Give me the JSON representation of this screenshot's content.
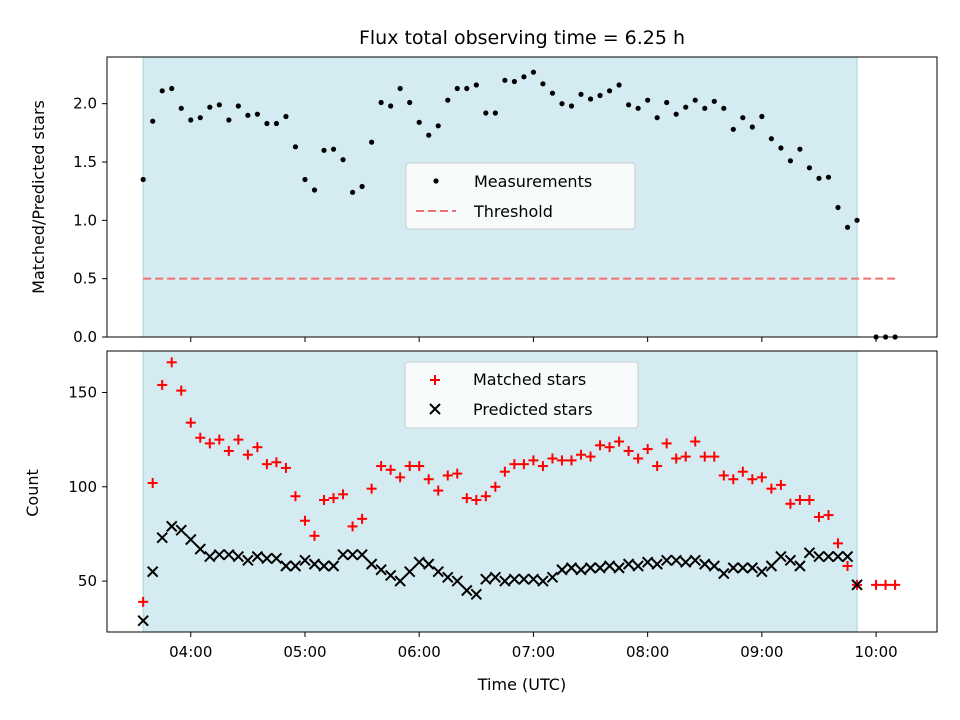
{
  "chart_data": [
    {
      "type": "scatter",
      "title": "Flux total observing time = 6.25 h",
      "ylabel": "Matched/Predicted stars",
      "xlabel": "",
      "xlim": [
        "03:16",
        "10:32"
      ],
      "ylim": [
        0,
        2.4
      ],
      "x_ticks": [
        "04:00",
        "05:00",
        "06:00",
        "07:00",
        "08:00",
        "09:00",
        "10:00"
      ],
      "x_tick_labels_shown": false,
      "y_ticks": [
        0.0,
        0.5,
        1.0,
        1.5,
        2.0
      ],
      "y_tick_labels": [
        "0.0",
        "0.5",
        "1.0",
        "1.5",
        "2.0"
      ],
      "observing_window": [
        "03:35",
        "09:50"
      ],
      "observing_window_color": "#d4ebf1",
      "legend": {
        "placement": "center",
        "entries": [
          "Measurements",
          "Threshold"
        ]
      },
      "series": [
        {
          "name": "Measurements",
          "marker": "dot",
          "color": "#000000",
          "x": [
            "03:35",
            "03:40",
            "03:45",
            "03:50",
            "03:55",
            "04:00",
            "04:05",
            "04:10",
            "04:15",
            "04:20",
            "04:25",
            "04:30",
            "04:35",
            "04:40",
            "04:45",
            "04:50",
            "04:55",
            "05:00",
            "05:05",
            "05:10",
            "05:15",
            "05:20",
            "05:25",
            "05:30",
            "05:35",
            "05:40",
            "05:45",
            "05:50",
            "05:55",
            "06:00",
            "06:05",
            "06:10",
            "06:15",
            "06:20",
            "06:25",
            "06:30",
            "06:35",
            "06:40",
            "06:45",
            "06:50",
            "06:55",
            "07:00",
            "07:05",
            "07:10",
            "07:15",
            "07:20",
            "07:25",
            "07:30",
            "07:35",
            "07:40",
            "07:45",
            "07:50",
            "07:55",
            "08:00",
            "08:05",
            "08:10",
            "08:15",
            "08:20",
            "08:25",
            "08:30",
            "08:35",
            "08:40",
            "08:45",
            "08:50",
            "08:55",
            "09:00",
            "09:05",
            "09:10",
            "09:15",
            "09:20",
            "09:25",
            "09:30",
            "09:35",
            "09:40",
            "09:45",
            "09:50",
            "10:00",
            "10:05",
            "10:10"
          ],
          "y": [
            1.35,
            1.85,
            2.11,
            2.13,
            1.96,
            1.86,
            1.88,
            1.97,
            1.99,
            1.86,
            1.98,
            1.9,
            1.91,
            1.83,
            1.83,
            1.89,
            1.63,
            1.35,
            1.26,
            1.6,
            1.61,
            1.52,
            1.24,
            1.29,
            1.67,
            2.01,
            1.98,
            2.13,
            2.01,
            1.84,
            1.73,
            1.81,
            2.03,
            2.13,
            2.13,
            2.16,
            1.92,
            1.92,
            2.2,
            2.19,
            2.23,
            2.27,
            2.17,
            2.09,
            2.0,
            1.98,
            2.08,
            2.04,
            2.07,
            2.11,
            2.16,
            1.99,
            1.96,
            2.03,
            1.88,
            2.01,
            1.91,
            1.97,
            2.03,
            1.96,
            2.02,
            1.96,
            1.78,
            1.88,
            1.8,
            1.89,
            1.7,
            1.62,
            1.51,
            1.61,
            1.45,
            1.36,
            1.37,
            1.11,
            0.94,
            1.0,
            0.0,
            0.0,
            0.0
          ]
        },
        {
          "name": "Threshold",
          "marker": "dashed-line",
          "color": "#f07070",
          "x": [
            "03:35",
            "10:10"
          ],
          "y": [
            0.5,
            0.5
          ]
        }
      ]
    },
    {
      "type": "scatter",
      "title": "",
      "ylabel": "Count",
      "xlabel": "Time (UTC)",
      "xlim": [
        "03:16",
        "10:32"
      ],
      "ylim": [
        23,
        172
      ],
      "x_ticks": [
        "04:00",
        "05:00",
        "06:00",
        "07:00",
        "08:00",
        "09:00",
        "10:00"
      ],
      "x_tick_labels": [
        "04:00",
        "05:00",
        "06:00",
        "07:00",
        "08:00",
        "09:00",
        "10:00"
      ],
      "y_ticks": [
        50,
        100,
        150
      ],
      "y_tick_labels": [
        "50",
        "100",
        "150"
      ],
      "observing_window": [
        "03:35",
        "09:50"
      ],
      "observing_window_color": "#d4ebf1",
      "legend": {
        "placement": "upper center",
        "entries": [
          "Matched stars",
          "Predicted stars"
        ]
      },
      "series": [
        {
          "name": "Matched stars",
          "marker": "plus",
          "color": "#ff0000",
          "x": [
            "03:35",
            "03:40",
            "03:45",
            "03:50",
            "03:55",
            "04:00",
            "04:05",
            "04:10",
            "04:15",
            "04:20",
            "04:25",
            "04:30",
            "04:35",
            "04:40",
            "04:45",
            "04:50",
            "04:55",
            "05:00",
            "05:05",
            "05:10",
            "05:15",
            "05:20",
            "05:25",
            "05:30",
            "05:35",
            "05:40",
            "05:45",
            "05:50",
            "05:55",
            "06:00",
            "06:05",
            "06:10",
            "06:15",
            "06:20",
            "06:25",
            "06:30",
            "06:35",
            "06:40",
            "06:45",
            "06:50",
            "06:55",
            "07:00",
            "07:05",
            "07:10",
            "07:15",
            "07:20",
            "07:25",
            "07:30",
            "07:35",
            "07:40",
            "07:45",
            "07:50",
            "07:55",
            "08:00",
            "08:05",
            "08:10",
            "08:15",
            "08:20",
            "08:25",
            "08:30",
            "08:35",
            "08:40",
            "08:45",
            "08:50",
            "08:55",
            "09:00",
            "09:05",
            "09:10",
            "09:15",
            "09:20",
            "09:25",
            "09:30",
            "09:35",
            "09:40",
            "09:45",
            "09:50",
            "10:00",
            "10:05",
            "10:10"
          ],
          "y": [
            39,
            102,
            154,
            166,
            151,
            134,
            126,
            123,
            125,
            119,
            125,
            117,
            121,
            112,
            113,
            110,
            95,
            82,
            74,
            93,
            94,
            96,
            79,
            83,
            99,
            111,
            109,
            105,
            111,
            111,
            104,
            98,
            106,
            107,
            94,
            93,
            95,
            100,
            108,
            112,
            112,
            114,
            111,
            115,
            114,
            114,
            117,
            116,
            122,
            121,
            124,
            119,
            115,
            120,
            111,
            123,
            115,
            116,
            124,
            116,
            116,
            106,
            104,
            108,
            104,
            105,
            99,
            101,
            91,
            93,
            93,
            84,
            85,
            70,
            58,
            48,
            48,
            48,
            48
          ]
        },
        {
          "name": "Predicted stars",
          "marker": "x",
          "color": "#000000",
          "x": [
            "03:35",
            "03:40",
            "03:45",
            "03:50",
            "03:55",
            "04:00",
            "04:05",
            "04:10",
            "04:15",
            "04:20",
            "04:25",
            "04:30",
            "04:35",
            "04:40",
            "04:45",
            "04:50",
            "04:55",
            "05:00",
            "05:05",
            "05:10",
            "05:15",
            "05:20",
            "05:25",
            "05:30",
            "05:35",
            "05:40",
            "05:45",
            "05:50",
            "05:55",
            "06:00",
            "06:05",
            "06:10",
            "06:15",
            "06:20",
            "06:25",
            "06:30",
            "06:35",
            "06:40",
            "06:45",
            "06:50",
            "06:55",
            "07:00",
            "07:05",
            "07:10",
            "07:15",
            "07:20",
            "07:25",
            "07:30",
            "07:35",
            "07:40",
            "07:45",
            "07:50",
            "07:55",
            "08:00",
            "08:05",
            "08:10",
            "08:15",
            "08:20",
            "08:25",
            "08:30",
            "08:35",
            "08:40",
            "08:45",
            "08:50",
            "08:55",
            "09:00",
            "09:05",
            "09:10",
            "09:15",
            "09:20",
            "09:25",
            "09:30",
            "09:35",
            "09:40",
            "09:45",
            "09:50"
          ],
          "y": [
            29,
            55,
            73,
            79,
            77,
            72,
            67,
            63,
            64,
            64,
            63,
            61,
            63,
            62,
            62,
            58,
            58,
            61,
            59,
            58,
            58,
            64,
            64,
            64,
            59,
            56,
            53,
            50,
            55,
            60,
            59,
            55,
            52,
            50,
            45,
            43,
            51,
            52,
            50,
            51,
            51,
            51,
            50,
            52,
            56,
            57,
            56,
            57,
            57,
            58,
            57,
            59,
            58,
            60,
            59,
            61,
            61,
            60,
            61,
            59,
            58,
            54,
            57,
            57,
            57,
            55,
            58,
            63,
            61,
            58,
            65,
            63,
            63,
            63,
            63,
            48
          ]
        }
      ]
    }
  ]
}
